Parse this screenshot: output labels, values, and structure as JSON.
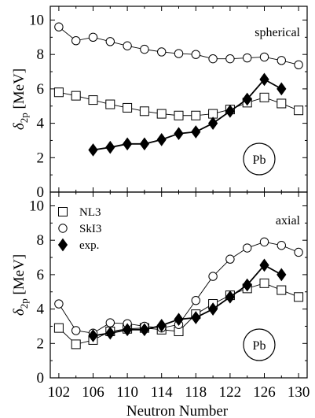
{
  "chart_data": [
    {
      "type": "line",
      "panel": "top",
      "annotation": "spherical",
      "badge": "Pb",
      "ylabel": "δ2p [MeV]",
      "ylim": [
        0,
        10.8
      ],
      "yticks": [
        0,
        2,
        4,
        6,
        8,
        10
      ],
      "xlim": [
        101,
        131
      ],
      "xticks": [
        102,
        106,
        110,
        114,
        118,
        122,
        126,
        130
      ],
      "series": [
        {
          "key": "nl3",
          "marker": "square",
          "x": [
            102,
            104,
            106,
            108,
            110,
            112,
            114,
            116,
            118,
            120,
            122,
            124,
            126,
            128,
            130
          ],
          "y": [
            5.8,
            5.6,
            5.35,
            5.1,
            4.9,
            4.7,
            4.55,
            4.45,
            4.45,
            4.55,
            4.8,
            5.2,
            5.5,
            5.15,
            4.75
          ]
        },
        {
          "key": "ski3",
          "marker": "circle",
          "x": [
            102,
            104,
            106,
            108,
            110,
            112,
            114,
            116,
            118,
            120,
            122,
            124,
            126,
            128,
            130
          ],
          "y": [
            9.6,
            8.8,
            9.0,
            8.75,
            8.5,
            8.3,
            8.15,
            8.05,
            8.0,
            7.75,
            7.75,
            7.8,
            7.85,
            7.65,
            7.4
          ]
        },
        {
          "key": "exp",
          "marker": "diamond",
          "x": [
            106,
            108,
            110,
            112,
            114,
            116,
            118,
            120,
            122,
            124,
            126,
            128
          ],
          "y": [
            2.45,
            2.6,
            2.8,
            2.8,
            3.05,
            3.4,
            3.5,
            4.0,
            4.7,
            5.4,
            6.55,
            6.0
          ]
        }
      ]
    },
    {
      "type": "line",
      "panel": "bottom",
      "annotation": "axial",
      "badge": "Pb",
      "ylabel": "δ2p [MeV]",
      "xlabel": "Neutron Number",
      "ylim": [
        0,
        10.8
      ],
      "yticks": [
        0,
        2,
        4,
        6,
        8,
        10
      ],
      "xlim": [
        101,
        131
      ],
      "xticks": [
        102,
        106,
        110,
        114,
        118,
        122,
        126,
        130
      ],
      "legend": {
        "placement": "top-left",
        "entries": [
          {
            "label": "NL3",
            "marker": "square"
          },
          {
            "label": "SkI3",
            "marker": "circle"
          },
          {
            "label": "exp.",
            "marker": "diamond"
          }
        ]
      },
      "series": [
        {
          "key": "nl3",
          "marker": "square",
          "x": [
            102,
            104,
            106,
            108,
            110,
            112,
            114,
            116,
            118,
            120,
            122,
            124,
            126,
            128,
            130
          ],
          "y": [
            2.9,
            1.95,
            2.2,
            2.7,
            2.85,
            2.9,
            2.8,
            2.7,
            3.7,
            4.3,
            4.8,
            5.2,
            5.5,
            5.1,
            4.7
          ]
        },
        {
          "key": "ski3",
          "marker": "circle",
          "x": [
            102,
            104,
            106,
            108,
            110,
            112,
            114,
            116,
            118,
            120,
            122,
            124,
            126,
            128,
            130
          ],
          "y": [
            4.3,
            2.75,
            2.6,
            3.2,
            3.15,
            3.0,
            2.9,
            3.1,
            4.5,
            5.9,
            6.9,
            7.55,
            7.9,
            7.7,
            7.3
          ]
        },
        {
          "key": "exp",
          "marker": "diamond",
          "x": [
            106,
            108,
            110,
            112,
            114,
            116,
            118,
            120,
            122,
            124,
            126,
            128
          ],
          "y": [
            2.45,
            2.6,
            2.8,
            2.8,
            3.05,
            3.4,
            3.5,
            4.0,
            4.7,
            5.4,
            6.55,
            6.0
          ]
        }
      ]
    }
  ]
}
